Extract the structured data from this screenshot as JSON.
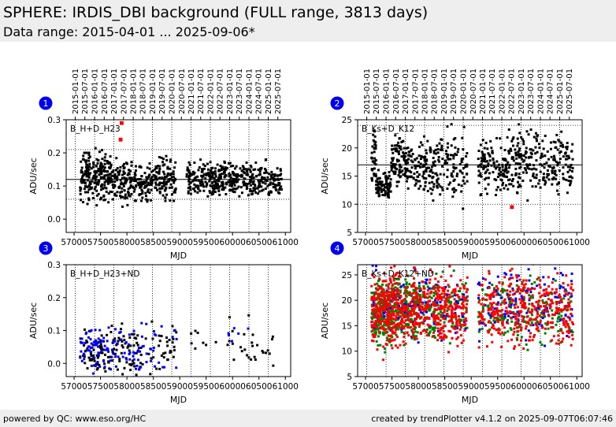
{
  "header": {
    "title": "SPHERE: IRDIS_DBI background (FULL range, 3813 days)",
    "subtitle": "Data range: 2015-04-01 ... 2025-09-06*"
  },
  "footer": {
    "left": "powered by QC: www.eso.org/HC",
    "right": "created by trendPlotter v4.1.2 on 2025-09-07T06:07:46"
  },
  "colors": {
    "black": "#000000",
    "blue": "#0000ff",
    "red": "#ff0000",
    "green": "#008000",
    "badge": "#0000ee"
  },
  "chart_data": [
    {
      "type": "scatter",
      "panel": "1",
      "label": "B_H+D_H23",
      "xlabel": "MJD",
      "ylabel": "ADU/sec",
      "xlim": [
        56850,
        61100
      ],
      "ylim": [
        -0.04,
        0.3
      ],
      "yticks": [
        0.0,
        0.1,
        0.2,
        0.3
      ],
      "ytick_labels": [
        "0.0",
        "0.1",
        "0.2",
        "0.3"
      ],
      "xticks": [
        57000,
        57500,
        58000,
        58500,
        59000,
        59500,
        60000,
        60500,
        61000
      ],
      "xtick_labels": [
        "57000",
        "57500",
        "58000",
        "58500",
        "59000",
        "59500",
        "60000",
        "60500",
        "61000"
      ],
      "date_axis": true,
      "reference_lines": {
        "median": 0.12,
        "lower": 0.06,
        "upper": 0.21
      },
      "series": [
        {
          "color": "black",
          "segments": [
            {
              "x0": 57114,
              "x1": 57700,
              "mid": 0.13,
              "spread": 0.035,
              "n": 220
            },
            {
              "x0": 57700,
              "x1": 58100,
              "mid": 0.115,
              "spread": 0.03,
              "n": 110
            },
            {
              "x0": 58100,
              "x1": 58500,
              "mid": 0.11,
              "spread": 0.025,
              "n": 90
            },
            {
              "x0": 58500,
              "x1": 58930,
              "mid": 0.12,
              "spread": 0.03,
              "n": 110
            },
            {
              "x0": 59130,
              "x1": 59700,
              "mid": 0.115,
              "spread": 0.025,
              "n": 140
            },
            {
              "x0": 59700,
              "x1": 60300,
              "mid": 0.12,
              "spread": 0.025,
              "n": 150
            },
            {
              "x0": 60300,
              "x1": 60930,
              "mid": 0.115,
              "spread": 0.025,
              "n": 140
            }
          ]
        },
        {
          "color": "red",
          "points": [
            [
              57900,
              0.29
            ],
            [
              57880,
              0.24
            ]
          ]
        }
      ]
    },
    {
      "type": "scatter",
      "panel": "2",
      "label": "B_Ks+D_K12",
      "xlabel": "MJD",
      "ylabel": "ADU/sec",
      "xlim": [
        56850,
        61100
      ],
      "ylim": [
        5,
        25
      ],
      "yticks": [
        5,
        10,
        15,
        20,
        25
      ],
      "ytick_labels": [
        "5",
        "10",
        "15",
        "20",
        "25"
      ],
      "xticks": [
        57000,
        57500,
        58000,
        58500,
        59000,
        59500,
        60000,
        60500,
        61000
      ],
      "xtick_labels": [
        "57000",
        "57500",
        "58000",
        "58500",
        "59000",
        "59500",
        "60000",
        "60500",
        "61000"
      ],
      "date_axis": true,
      "reference_lines": {
        "median": 17,
        "lower": 10,
        "upper": 24
      },
      "series": [
        {
          "color": "black",
          "segments": [
            {
              "x0": 57114,
              "x1": 57200,
              "mid": 18.5,
              "spread": 2,
              "n": 40
            },
            {
              "x0": 57200,
              "x1": 57480,
              "mid": 13.5,
              "spread": 1.2,
              "n": 90
            },
            {
              "x0": 57480,
              "x1": 57850,
              "mid": 17.5,
              "spread": 2.2,
              "n": 110
            },
            {
              "x0": 57850,
              "x1": 58350,
              "mid": 16.5,
              "spread": 2.5,
              "n": 110
            },
            {
              "x0": 58350,
              "x1": 58930,
              "mid": 17,
              "spread": 3,
              "n": 110
            },
            {
              "x0": 59130,
              "x1": 59700,
              "mid": 16.5,
              "spread": 2.2,
              "n": 120
            },
            {
              "x0": 59700,
              "x1": 60300,
              "mid": 18,
              "spread": 2.8,
              "n": 130
            },
            {
              "x0": 60300,
              "x1": 60930,
              "mid": 17.5,
              "spread": 2.5,
              "n": 120
            }
          ]
        },
        {
          "color": "red",
          "points": [
            [
              59770,
              9.5
            ]
          ]
        }
      ]
    },
    {
      "type": "scatter",
      "panel": "3",
      "label": "B_H+D_H23+ND",
      "xlabel": "MJD",
      "ylabel": "ADU/sec",
      "xlim": [
        56850,
        61100
      ],
      "ylim": [
        -0.04,
        0.3
      ],
      "yticks": [
        0.0,
        0.1,
        0.2,
        0.3
      ],
      "ytick_labels": [
        "0.0",
        "0.1",
        "0.2",
        "0.3"
      ],
      "xticks": [
        57000,
        57500,
        58000,
        58500,
        59000,
        59500,
        60000,
        60500,
        61000
      ],
      "xtick_labels": [
        "57000",
        "57500",
        "58000",
        "58500",
        "59000",
        "59500",
        "60000",
        "60500",
        "61000"
      ],
      "date_axis": false,
      "series": [
        {
          "color": "black",
          "segments": [
            {
              "x0": 57114,
              "x1": 57700,
              "mid": 0.03,
              "spread": 0.035,
              "n": 70
            },
            {
              "x0": 57700,
              "x1": 58300,
              "mid": 0.03,
              "spread": 0.035,
              "n": 60
            },
            {
              "x0": 58300,
              "x1": 58950,
              "mid": 0.05,
              "spread": 0.035,
              "n": 35
            },
            {
              "x0": 59200,
              "x1": 59700,
              "mid": 0.08,
              "spread": 0.025,
              "n": 8
            },
            {
              "x0": 59900,
              "x1": 60350,
              "mid": 0.06,
              "spread": 0.035,
              "n": 14
            },
            {
              "x0": 60350,
              "x1": 60900,
              "mid": 0.04,
              "spread": 0.025,
              "n": 14
            }
          ]
        },
        {
          "color": "blue",
          "segments": [
            {
              "x0": 57114,
              "x1": 57700,
              "mid": 0.04,
              "spread": 0.04,
              "n": 60
            },
            {
              "x0": 57700,
              "x1": 58300,
              "mid": 0.04,
              "spread": 0.035,
              "n": 40
            },
            {
              "x0": 58300,
              "x1": 58950,
              "mid": 0.05,
              "spread": 0.035,
              "n": 20
            },
            {
              "x0": 59900,
              "x1": 60400,
              "mid": 0.08,
              "spread": 0.04,
              "n": 6
            }
          ]
        }
      ]
    },
    {
      "type": "scatter",
      "panel": "4",
      "label": "B_Ks+D_K12+ND",
      "xlabel": "MJD",
      "ylabel": "ADU/sec",
      "xlim": [
        56850,
        61100
      ],
      "ylim": [
        5,
        27
      ],
      "yticks": [
        5,
        10,
        15,
        20,
        25
      ],
      "ytick_labels": [
        "5",
        "10",
        "15",
        "20",
        "25"
      ],
      "xticks": [
        57000,
        57500,
        58000,
        58500,
        59000,
        59500,
        60000,
        60500,
        61000
      ],
      "xtick_labels": [
        "57000",
        "57500",
        "58000",
        "58500",
        "59000",
        "59500",
        "60000",
        "60500",
        "61000"
      ],
      "date_axis": false,
      "series": [
        {
          "color": "green",
          "segments": [
            {
              "x0": 57114,
              "x1": 57500,
              "mid": 17.5,
              "spread": 3,
              "n": 220
            },
            {
              "x0": 57500,
              "x1": 58000,
              "mid": 18.5,
              "spread": 3,
              "n": 220
            },
            {
              "x0": 58000,
              "x1": 58930,
              "mid": 18,
              "spread": 3,
              "n": 160
            },
            {
              "x0": 59130,
              "x1": 60930,
              "mid": 18,
              "spread": 3,
              "n": 200
            }
          ]
        },
        {
          "color": "blue",
          "segments": [
            {
              "x0": 57114,
              "x1": 58930,
              "mid": 19,
              "spread": 3,
              "n": 120
            },
            {
              "x0": 59130,
              "x1": 60930,
              "mid": 19.5,
              "spread": 3,
              "n": 130
            }
          ]
        },
        {
          "color": "red",
          "segments": [
            {
              "x0": 57114,
              "x1": 57500,
              "mid": 18,
              "spread": 3.5,
              "n": 180
            },
            {
              "x0": 57500,
              "x1": 58000,
              "mid": 18,
              "spread": 3.5,
              "n": 200
            },
            {
              "x0": 58000,
              "x1": 58930,
              "mid": 18.5,
              "spread": 3.5,
              "n": 280
            },
            {
              "x0": 59130,
              "x1": 60930,
              "mid": 18.5,
              "spread": 3.5,
              "n": 380
            }
          ]
        }
      ]
    }
  ],
  "date_ticks": {
    "labels": [
      "2015-01-01",
      "2015-07-01",
      "2016-01-01",
      "2016-07-01",
      "2017-01-01",
      "2017-07-01",
      "2018-01-01",
      "2018-07-01",
      "2019-01-01",
      "2019-07-01",
      "2020-01-01",
      "2020-07-01",
      "2021-01-01",
      "2021-07-01",
      "2022-01-01",
      "2022-07-01",
      "2023-01-01",
      "2023-07-01",
      "2024-01-01",
      "2024-07-01",
      "2025-01-01",
      "2025-07-01"
    ],
    "mjd": [
      57023,
      57204,
      57388,
      57570,
      57754,
      57935,
      58119,
      58300,
      58484,
      58665,
      58849,
      59031,
      59215,
      59396,
      59580,
      59761,
      59945,
      60126,
      60310,
      60492,
      60676,
      60857
    ]
  }
}
